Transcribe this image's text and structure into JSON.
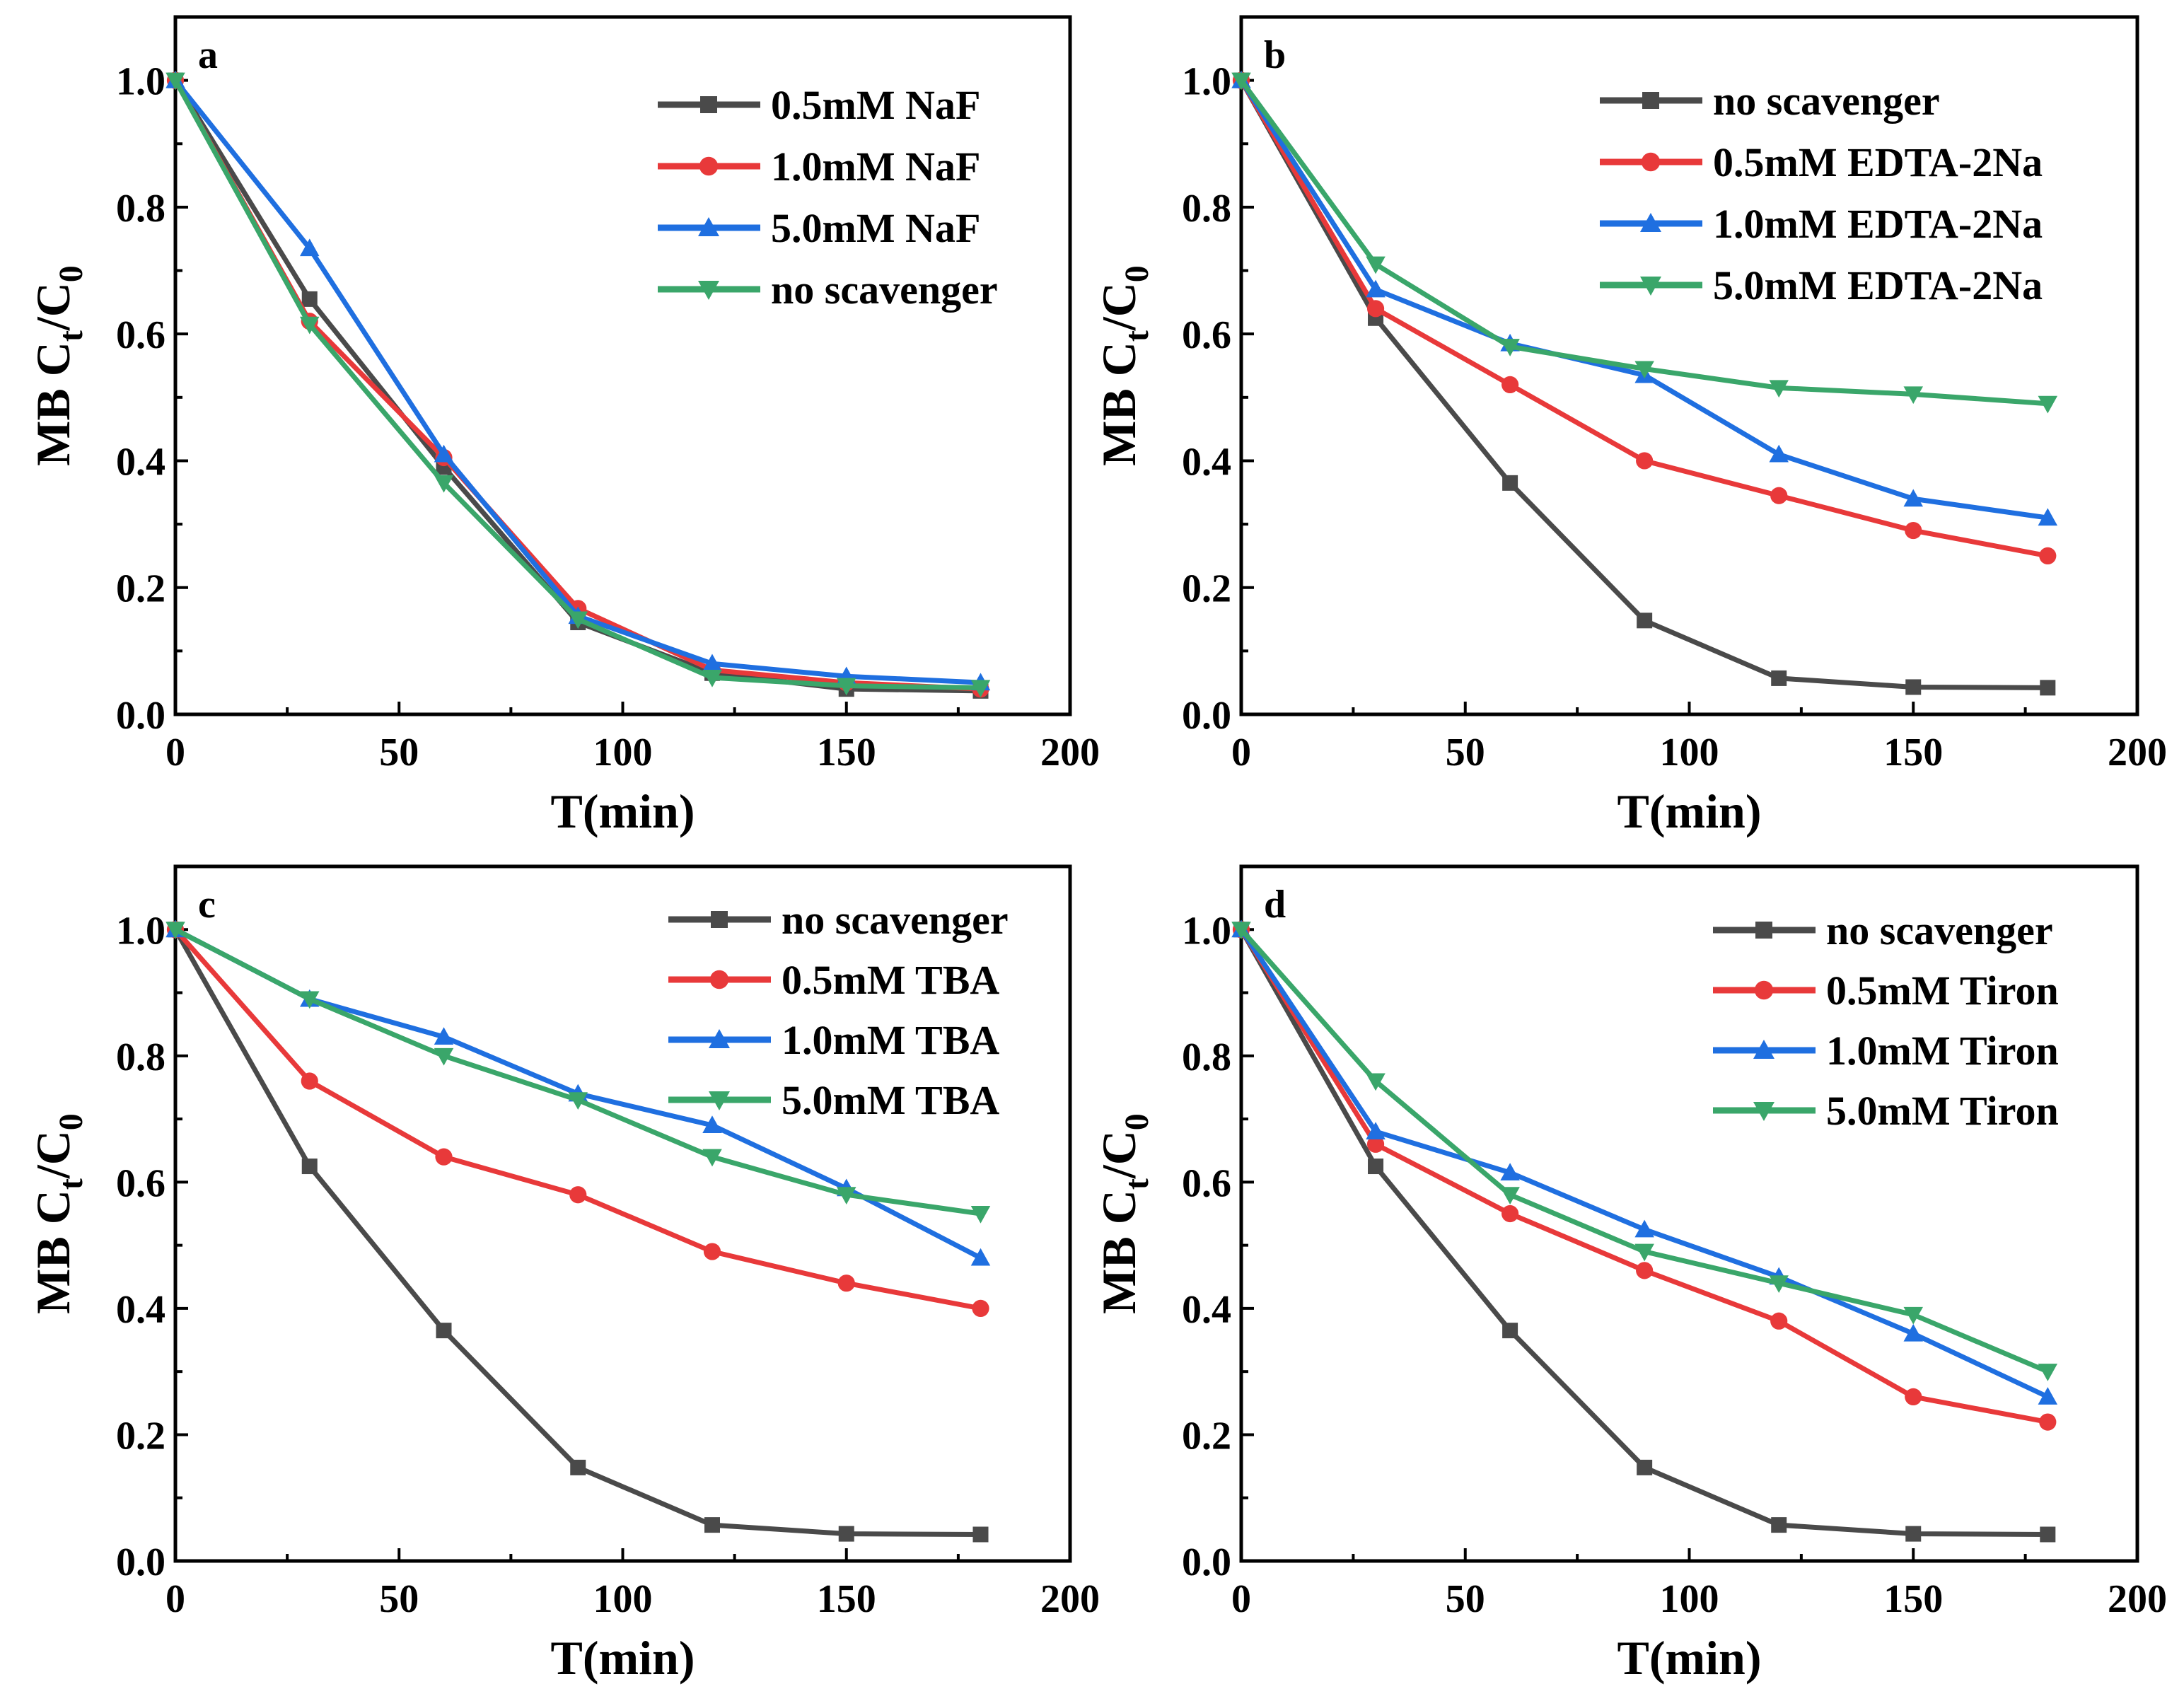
{
  "colors": {
    "no_scavenger": "#4a4a4a",
    "c05": "#e8393a",
    "c10": "#1f6fe0",
    "c50": "#3aa66a"
  },
  "chart_data": [
    {
      "type": "line",
      "panel_label": "a",
      "xlabel": "T(min)",
      "ylabel": "MB C_t/C_0",
      "xlim": [
        0,
        200
      ],
      "ylim": [
        0,
        1.1
      ],
      "xticks": [
        0,
        50,
        100,
        150,
        200
      ],
      "yticks": [
        0.0,
        0.2,
        0.4,
        0.6,
        0.8,
        1.0
      ],
      "legend_position": "top-right",
      "x": [
        0,
        30,
        60,
        90,
        120,
        150,
        180
      ],
      "series": [
        {
          "name": "0.5mM NaF",
          "marker": "square",
          "color": "#4a4a4a",
          "values": [
            1.0,
            0.655,
            0.39,
            0.145,
            0.065,
            0.04,
            0.037
          ]
        },
        {
          "name": "1.0mM NaF",
          "marker": "circle",
          "color": "#e8393a",
          "values": [
            1.0,
            0.62,
            0.405,
            0.167,
            0.07,
            0.05,
            0.04
          ]
        },
        {
          "name": "5.0mM NaF",
          "marker": "triangle-up",
          "color": "#1f6fe0",
          "values": [
            1.0,
            0.735,
            0.41,
            0.155,
            0.08,
            0.06,
            0.05
          ]
        },
        {
          "name": "no scavenger",
          "marker": "triangle-down",
          "color": "#3aa66a",
          "values": [
            1.0,
            0.615,
            0.365,
            0.15,
            0.058,
            0.045,
            0.042
          ]
        }
      ]
    },
    {
      "type": "line",
      "panel_label": "b",
      "xlabel": "T(min)",
      "ylabel": "MB C_t/C_0",
      "xlim": [
        0,
        200
      ],
      "ylim": [
        0,
        1.1
      ],
      "xticks": [
        0,
        50,
        100,
        150,
        200
      ],
      "yticks": [
        0.0,
        0.2,
        0.4,
        0.6,
        0.8,
        1.0
      ],
      "legend_position": "top-right",
      "x": [
        0,
        30,
        60,
        90,
        120,
        150,
        180
      ],
      "series": [
        {
          "name": "no scavenger",
          "marker": "square",
          "color": "#4a4a4a",
          "values": [
            1.0,
            0.625,
            0.365,
            0.148,
            0.057,
            0.043,
            0.042
          ]
        },
        {
          "name": "0.5mM EDTA-2Na",
          "marker": "circle",
          "color": "#e8393a",
          "values": [
            1.0,
            0.64,
            0.52,
            0.4,
            0.345,
            0.29,
            0.25
          ]
        },
        {
          "name": "1.0mM EDTA-2Na",
          "marker": "triangle-up",
          "color": "#1f6fe0",
          "values": [
            1.0,
            0.67,
            0.585,
            0.535,
            0.41,
            0.34,
            0.31
          ]
        },
        {
          "name": "5.0mM EDTA-2Na",
          "marker": "triangle-down",
          "color": "#3aa66a",
          "values": [
            1.0,
            0.71,
            0.58,
            0.545,
            0.515,
            0.505,
            0.49
          ]
        }
      ]
    },
    {
      "type": "line",
      "panel_label": "c",
      "xlabel": "T(min)",
      "ylabel": "MB C_t/C_0",
      "xlim": [
        0,
        200
      ],
      "ylim": [
        0,
        1.1
      ],
      "xticks": [
        0,
        50,
        100,
        150,
        200
      ],
      "yticks": [
        0.0,
        0.2,
        0.4,
        0.6,
        0.8,
        1.0
      ],
      "legend_position": "top-right",
      "x": [
        0,
        30,
        60,
        90,
        120,
        150,
        180
      ],
      "series": [
        {
          "name": "no scavenger",
          "marker": "square",
          "color": "#4a4a4a",
          "values": [
            1.0,
            0.625,
            0.365,
            0.148,
            0.057,
            0.043,
            0.042
          ]
        },
        {
          "name": "0.5mM TBA",
          "marker": "circle",
          "color": "#e8393a",
          "values": [
            1.0,
            0.76,
            0.64,
            0.58,
            0.49,
            0.44,
            0.4
          ]
        },
        {
          "name": "1.0mM TBA",
          "marker": "triangle-up",
          "color": "#1f6fe0",
          "values": [
            1.0,
            0.89,
            0.83,
            0.74,
            0.69,
            0.59,
            0.48
          ]
        },
        {
          "name": "5.0mM TBA",
          "marker": "triangle-down",
          "color": "#3aa66a",
          "values": [
            1.0,
            0.89,
            0.8,
            0.73,
            0.64,
            0.58,
            0.55
          ]
        }
      ]
    },
    {
      "type": "line",
      "panel_label": "d",
      "xlabel": "T(min)",
      "ylabel": "MB C_t/C_0",
      "xlim": [
        0,
        200
      ],
      "ylim": [
        0,
        1.1
      ],
      "xticks": [
        0,
        50,
        100,
        150,
        200
      ],
      "yticks": [
        0.0,
        0.2,
        0.4,
        0.6,
        0.8,
        1.0
      ],
      "legend_position": "top-right",
      "x": [
        0,
        30,
        60,
        90,
        120,
        150,
        180
      ],
      "series": [
        {
          "name": "no scavenger",
          "marker": "square",
          "color": "#4a4a4a",
          "values": [
            1.0,
            0.625,
            0.365,
            0.148,
            0.057,
            0.043,
            0.042
          ]
        },
        {
          "name": "0.5mM Tiron",
          "marker": "circle",
          "color": "#e8393a",
          "values": [
            1.0,
            0.66,
            0.55,
            0.46,
            0.38,
            0.26,
            0.22
          ]
        },
        {
          "name": "1.0mM Tiron",
          "marker": "triangle-up",
          "color": "#1f6fe0",
          "values": [
            1.0,
            0.68,
            0.615,
            0.525,
            0.45,
            0.36,
            0.26
          ]
        },
        {
          "name": "5.0mM Tiron",
          "marker": "triangle-down",
          "color": "#3aa66a",
          "values": [
            1.0,
            0.76,
            0.58,
            0.49,
            0.44,
            0.39,
            0.3
          ]
        }
      ]
    }
  ]
}
